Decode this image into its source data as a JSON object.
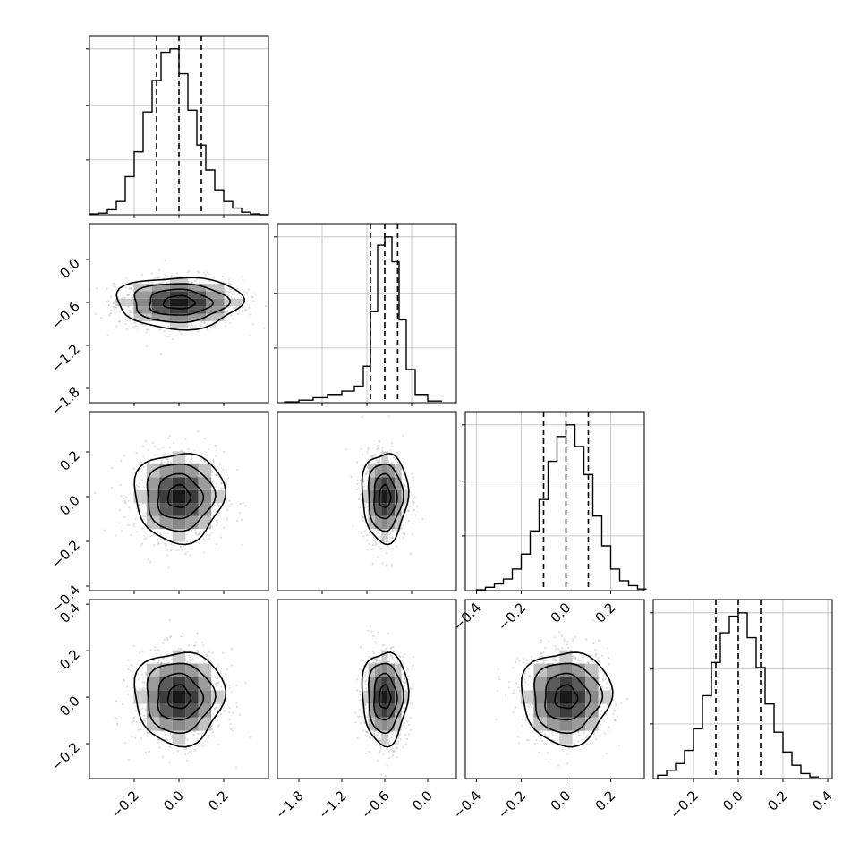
{
  "figure": {
    "background": "#ffffff",
    "kind": "corner plot"
  },
  "chart_data": [
    {
      "type": "bar",
      "panel": "histogram-param-1",
      "xlim": [
        -0.4,
        0.4
      ],
      "bin_centers": [
        -0.38,
        -0.34,
        -0.3,
        -0.26,
        -0.22,
        -0.18,
        -0.14,
        -0.1,
        -0.06,
        -0.02,
        0.02,
        0.06,
        0.1,
        0.14,
        0.18,
        0.22,
        0.26,
        0.3,
        0.34,
        0.38
      ],
      "values": [
        0.005,
        0.01,
        0.03,
        0.08,
        0.23,
        0.38,
        0.62,
        0.81,
        0.98,
        1.0,
        0.85,
        0.63,
        0.42,
        0.27,
        0.15,
        0.08,
        0.04,
        0.015,
        0.005,
        0
      ],
      "quantiles": [
        -0.1,
        0.0,
        0.1
      ],
      "xticks": [],
      "yticks": [],
      "grid": true
    },
    {
      "type": "bar",
      "panel": "histogram-param-2",
      "xlim": [
        -2.1,
        0.4
      ],
      "bin_centers": [
        -1.9,
        -1.7,
        -1.5,
        -1.3,
        -1.1,
        -0.95,
        -0.85,
        -0.75,
        -0.65,
        -0.55,
        -0.45,
        -0.35,
        -0.25,
        -0.1,
        0.1
      ],
      "values": [
        0.005,
        0.015,
        0.03,
        0.05,
        0.07,
        0.1,
        0.22,
        0.55,
        0.95,
        1.0,
        0.85,
        0.5,
        0.2,
        0.05,
        0.01
      ],
      "quantiles": [
        -0.8,
        -0.6,
        -0.42
      ],
      "xticks": [],
      "yticks": [],
      "grid": true
    },
    {
      "type": "bar",
      "panel": "histogram-param-3",
      "xlim": [
        -0.45,
        0.35
      ],
      "bin_centers": [
        -0.38,
        -0.34,
        -0.3,
        -0.26,
        -0.22,
        -0.18,
        -0.14,
        -0.1,
        -0.06,
        -0.02,
        0.02,
        0.06,
        0.1,
        0.14,
        0.18,
        0.22,
        0.26,
        0.3,
        0.34
      ],
      "values": [
        0.005,
        0.02,
        0.04,
        0.07,
        0.13,
        0.22,
        0.36,
        0.55,
        0.78,
        0.93,
        1.0,
        0.87,
        0.7,
        0.45,
        0.27,
        0.13,
        0.06,
        0.03,
        0.01
      ],
      "quantiles": [
        -0.1,
        0.0,
        0.1
      ],
      "xticks": [
        -0.4,
        -0.2,
        0.0,
        0.2
      ],
      "xticklabels": [
        "−0.4",
        "−0.2",
        "0.0",
        "0.2"
      ],
      "yticks": [],
      "grid": true
    },
    {
      "type": "bar",
      "panel": "histogram-param-4",
      "xlim": [
        -0.38,
        0.42
      ],
      "bin_centers": [
        -0.34,
        -0.3,
        -0.26,
        -0.22,
        -0.18,
        -0.14,
        -0.1,
        -0.06,
        -0.02,
        0.02,
        0.06,
        0.1,
        0.14,
        0.18,
        0.22,
        0.26,
        0.3,
        0.34
      ],
      "values": [
        0.02,
        0.05,
        0.09,
        0.17,
        0.3,
        0.5,
        0.7,
        0.88,
        0.98,
        1.0,
        0.85,
        0.67,
        0.45,
        0.28,
        0.16,
        0.08,
        0.03,
        0.01
      ],
      "quantiles": [
        -0.1,
        0.0,
        0.1
      ],
      "xticks": [
        -0.2,
        0.0,
        0.2,
        0.4
      ],
      "xticklabels": [
        "−0.2",
        "0.0",
        "0.2",
        "0.4"
      ],
      "yticks": [],
      "grid": true
    },
    {
      "type": "heatmap",
      "panel": "2d-param-1-vs-2",
      "xlim": [
        -0.4,
        0.4
      ],
      "ylim": [
        -2.0,
        0.5
      ],
      "center": [
        0.0,
        -0.6
      ],
      "spread": [
        0.14,
        0.18
      ],
      "yticks": [
        0.0,
        -0.6,
        -1.2,
        -1.8
      ],
      "yticklabels": [
        "0.0",
        "−0.6",
        "−1.2",
        "−1.8"
      ]
    },
    {
      "type": "heatmap",
      "panel": "2d-param-1-vs-3",
      "xlim": [
        -0.4,
        0.4
      ],
      "ylim": [
        -0.42,
        0.38
      ],
      "center": [
        0.0,
        0.0
      ],
      "spread": [
        0.1,
        0.1
      ],
      "yticks": [
        0.2,
        0.0,
        -0.2,
        -0.4
      ],
      "yticklabels": [
        "0.2",
        "0.0",
        "−0.2",
        "−0.4"
      ]
    },
    {
      "type": "heatmap",
      "panel": "2d-param-2-vs-3",
      "xlim": [
        -2.1,
        0.4
      ],
      "ylim": [
        -0.42,
        0.38
      ],
      "center": [
        -0.6,
        0.0
      ],
      "spread": [
        0.16,
        0.1
      ]
    },
    {
      "type": "heatmap",
      "panel": "2d-param-1-vs-4",
      "xlim": [
        -0.4,
        0.4
      ],
      "ylim": [
        -0.35,
        0.42
      ],
      "center": [
        0.0,
        0.0
      ],
      "spread": [
        0.1,
        0.1
      ],
      "xticks": [
        -0.2,
        0.0,
        0.2
      ],
      "xticklabels": [
        "−0.2",
        "0.0",
        "0.2"
      ],
      "yticks": [
        0.4,
        0.2,
        0.0,
        -0.2
      ],
      "yticklabels": [
        "0.4",
        "0.2",
        "0.0",
        "−0.2"
      ]
    },
    {
      "type": "heatmap",
      "panel": "2d-param-2-vs-4",
      "xlim": [
        -2.1,
        0.4
      ],
      "ylim": [
        -0.35,
        0.42
      ],
      "center": [
        -0.6,
        0.0
      ],
      "spread": [
        0.16,
        0.1
      ],
      "xticks": [
        -1.8,
        -1.2,
        -0.6,
        0.0
      ],
      "xticklabels": [
        "−1.8",
        "−1.2",
        "−0.6",
        "0.0"
      ]
    },
    {
      "type": "heatmap",
      "panel": "2d-param-3-vs-4",
      "xlim": [
        -0.45,
        0.35
      ],
      "ylim": [
        -0.35,
        0.42
      ],
      "center": [
        0.0,
        0.0
      ],
      "spread": [
        0.1,
        0.1
      ],
      "xticks": [
        -0.4,
        -0.2,
        0.0,
        0.2
      ],
      "xticklabels": [
        "−0.4",
        "−0.2",
        "0.0",
        "0.2"
      ]
    }
  ]
}
